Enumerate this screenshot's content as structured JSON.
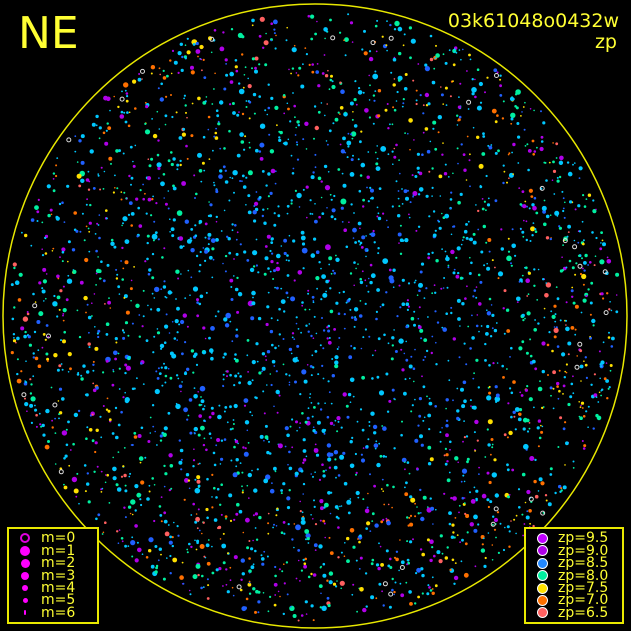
{
  "corner_label": "NE",
  "frame_id": "03k61048o0432w",
  "color_key": "zp",
  "circle_color": "#e8e800",
  "magnitude_legend": [
    {
      "label": "m=0",
      "open": true
    },
    {
      "label": "m=1"
    },
    {
      "label": "m=2"
    },
    {
      "label": "m=3"
    },
    {
      "label": "m=4"
    },
    {
      "label": "m=5"
    },
    {
      "label": "m=6"
    }
  ],
  "zp_legend": [
    {
      "label": "zp=9.5",
      "color": "#c000ff"
    },
    {
      "label": "zp=9.0",
      "color": "#b000e8"
    },
    {
      "label": "zp=8.5",
      "color": "#2288ff"
    },
    {
      "label": "zp=8.0",
      "color": "#00f0a0"
    },
    {
      "label": "zp=7.5",
      "color": "#ffe000"
    },
    {
      "label": "zp=7.0",
      "color": "#ff7000"
    },
    {
      "label": "zp=6.5",
      "color": "#ff6060"
    }
  ],
  "star_color_mix": {
    "cyan": "#00c8ff",
    "blue": "#2060ff",
    "white": "#ffffff"
  }
}
